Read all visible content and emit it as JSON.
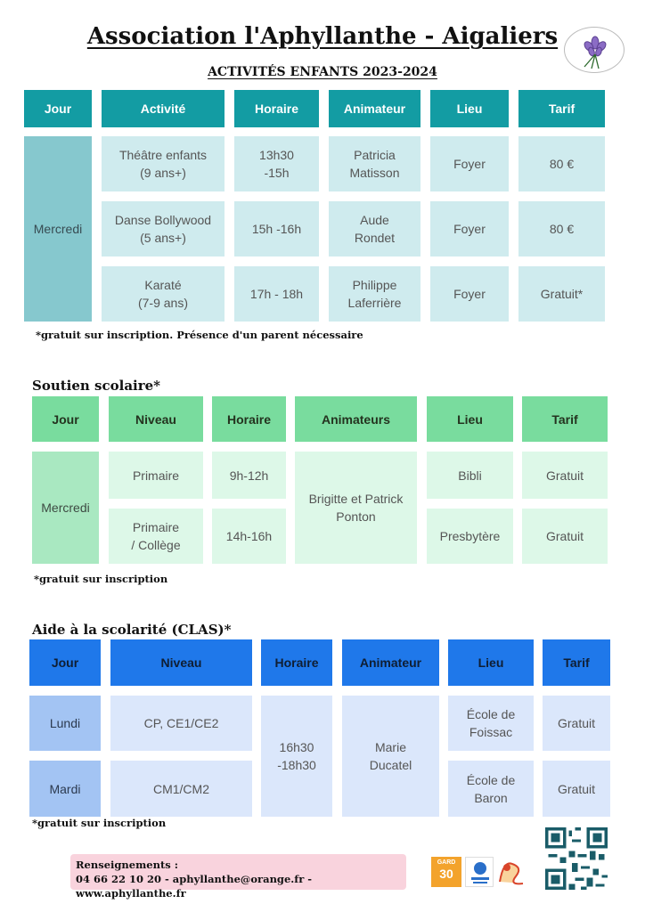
{
  "header": {
    "title": "Association l'Aphyllanthe - Aigaliers",
    "subtitle": "ACTIVITÉS ENFANTS 2023-2024"
  },
  "table1": {
    "headers": [
      "Jour",
      "Activité",
      "Horaire",
      "Animateur",
      "Lieu",
      "Tarif"
    ],
    "day": "Mercredi",
    "rows": [
      [
        "Théâtre enfants\n(9 ans+)",
        "13h30\n-15h",
        "Patricia\nMatisson",
        "Foyer",
        "80 €"
      ],
      [
        "Danse Bollywood\n(5 ans+)",
        "15h -16h",
        "Aude\nRondet",
        "Foyer",
        "80 €"
      ],
      [
        "Karaté\n(7-9 ans)",
        "17h - 18h",
        "Philippe\nLaferrière",
        "Foyer",
        "Gratuit*"
      ]
    ],
    "note": "*gratuit sur inscription. Présence d'un parent nécessaire"
  },
  "table2": {
    "section_title": "Soutien scolaire*",
    "headers": [
      "Jour",
      "Niveau",
      "Horaire",
      "Animateurs",
      "Lieu",
      "Tarif"
    ],
    "day": "Mercredi",
    "animateurs": "Brigitte et Patrick\nPonton",
    "rows": [
      {
        "niveau": "Primaire",
        "horaire": "9h-12h",
        "lieu": "Bibli",
        "tarif": "Gratuit"
      },
      {
        "niveau": "Primaire\n/ Collège",
        "horaire": "14h-16h",
        "lieu": "Presbytère",
        "tarif": "Gratuit"
      }
    ],
    "note": "*gratuit sur inscription"
  },
  "table3": {
    "section_title": "Aide à la scolarité (CLAS)*",
    "headers": [
      "Jour",
      "Niveau",
      "Horaire",
      "Animateur",
      "Lieu",
      "Tarif"
    ],
    "horaire": "16h30\n-18h30",
    "animateur": "Marie\nDucatel",
    "rows": [
      {
        "jour": "Lundi",
        "niveau": "CP, CE1/CE2",
        "lieu": "École de\nFoissac",
        "tarif": "Gratuit"
      },
      {
        "jour": "Mardi",
        "niveau": "CM1/CM2",
        "lieu": "École de\nBaron",
        "tarif": "Gratuit"
      }
    ],
    "note": "*gratuit sur inscription"
  },
  "contact": {
    "label": "Renseignements :",
    "line": "04 66 22 10 20 - aphyllanthe@orange.fr - www.aphyllanthe.fr"
  },
  "logos": {
    "garo_number": "30",
    "garo_label": "GARD",
    "flower_icon": "aphyllanthe-flower-icon",
    "caf_icon": "caf-logo-icon",
    "partner_icon": "partner-logo-icon",
    "qr_icon": "qr-code-icon"
  }
}
